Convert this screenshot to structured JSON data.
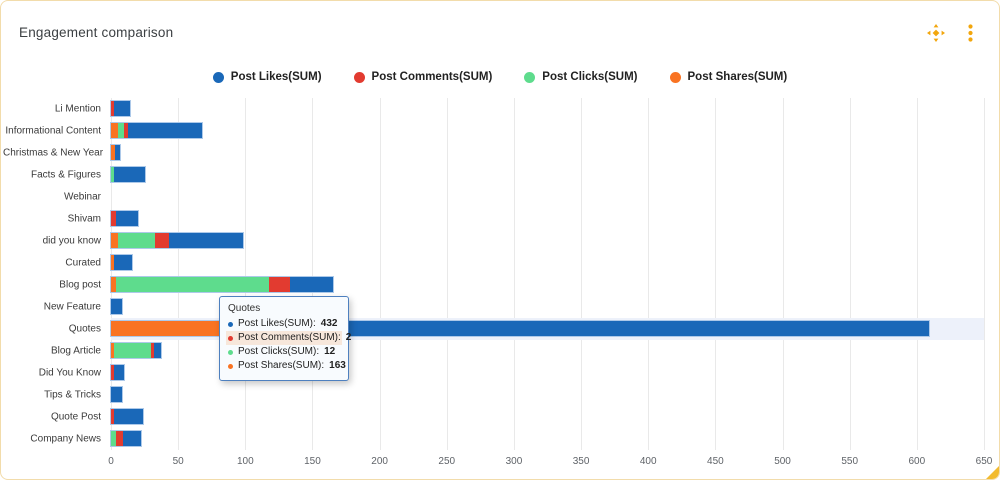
{
  "header": {
    "title": "Engagement comparison"
  },
  "icons": [
    {
      "name": "move-icon",
      "color": "#F2A60D"
    },
    {
      "name": "kebab-menu-icon",
      "color": "#F2A60D"
    }
  ],
  "colors": {
    "likes": "#1A68B8",
    "comments": "#E23B30",
    "clicks": "#5EDC8D",
    "shares": "#F97322",
    "accent": "#F2A60D",
    "row_highlight": "#EDF1FA",
    "gridline": "#E9E9E9",
    "card_border": "#F2DCAB",
    "tooltip_border": "#4E80BF"
  },
  "legend": {
    "items": [
      {
        "label": "Post Likes(SUM)",
        "color": "#1A68B8"
      },
      {
        "label": "Post Comments(SUM)",
        "color": "#E23B30"
      },
      {
        "label": "Post Clicks(SUM)",
        "color": "#5EDC8D"
      },
      {
        "label": "Post Shares(SUM)",
        "color": "#F97322"
      }
    ]
  },
  "chart_data": {
    "type": "bar",
    "orientation": "horizontal",
    "stacked": true,
    "title": "Engagement comparison",
    "xlabel": "",
    "ylabel": "",
    "grid": "vertical",
    "legend_position": "top",
    "xlim": [
      0,
      650
    ],
    "x_ticks": [
      0,
      50,
      100,
      150,
      200,
      250,
      300,
      350,
      400,
      450,
      500,
      550,
      600,
      650
    ],
    "categories": [
      "Li Mention",
      "Informational Content",
      "Christmas & New Year",
      "Facts & Figures",
      "Webinar",
      "Shivam",
      "did you know",
      "Curated",
      "Blog post",
      "New Feature",
      "Quotes",
      "Blog Article",
      "Did You Know",
      "Tips & Tricks",
      "Quote Post",
      "Company News"
    ],
    "stack_order_note": "segments drawn left-to-right: Shares, Clicks, Comments, Likes",
    "series": [
      {
        "name": "Post Shares(SUM)",
        "color": "#F97322",
        "values": [
          0,
          5,
          3,
          0,
          0,
          0,
          5,
          2,
          4,
          0,
          163,
          2,
          0,
          0,
          0,
          0
        ]
      },
      {
        "name": "Post Clicks(SUM)",
        "color": "#5EDC8D",
        "values": [
          0,
          5,
          0,
          2,
          0,
          0,
          28,
          0,
          114,
          0,
          12,
          28,
          0,
          0,
          0,
          4
        ]
      },
      {
        "name": "Post Comments(SUM)",
        "color": "#E23B30",
        "values": [
          2,
          3,
          0,
          0,
          0,
          4,
          10,
          0,
          15,
          0,
          2,
          2,
          2,
          0,
          2,
          5
        ]
      },
      {
        "name": "Post Likes(SUM)",
        "color": "#1A68B8",
        "values": [
          12,
          55,
          4,
          23,
          0,
          16,
          55,
          14,
          32,
          8,
          432,
          5,
          8,
          8,
          22,
          13
        ]
      }
    ],
    "highlighted_category": "Quotes"
  },
  "tooltip": {
    "title": "Quotes",
    "rows": [
      {
        "label": "Post Likes(SUM)",
        "value": "432",
        "color": "#1A68B8",
        "highlighted": false
      },
      {
        "label": "Post Comments(SUM)",
        "value": "2",
        "color": "#E23B30",
        "highlighted": true
      },
      {
        "label": "Post Clicks(SUM)",
        "value": "12",
        "color": "#5EDC8D",
        "highlighted": false
      },
      {
        "label": "Post Shares(SUM)",
        "value": "163",
        "color": "#F97322",
        "highlighted": false
      }
    ]
  }
}
